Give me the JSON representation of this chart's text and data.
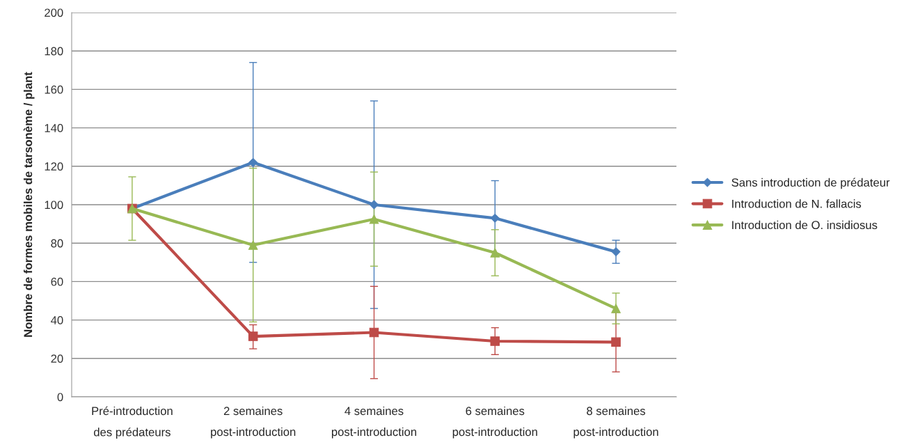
{
  "chart_data": {
    "type": "line",
    "ylabel": "Nombre de formes mobiles de tarsonème / plant",
    "categories": [
      "Pré-introduction\ndes prédateurs",
      "2 semaines\npost-introduction",
      "4 semaines\npost-introduction",
      "6 semaines\npost-introduction",
      "8 semaines\npost-introduction"
    ],
    "series": [
      {
        "name": "Sans introduction de prédateur",
        "color": "#4a7ebb",
        "marker": "diamond",
        "values": [
          98,
          122,
          100,
          93,
          75.5
        ],
        "errors": [
          null,
          [
            70,
            174
          ],
          [
            46,
            154
          ],
          [
            73.5,
            112.5
          ],
          [
            69.5,
            81.5
          ]
        ]
      },
      {
        "name": "Introduction de N. fallacis",
        "color": "#be4b48",
        "marker": "square",
        "values": [
          98,
          31.5,
          33.5,
          29,
          28.5
        ],
        "errors": [
          null,
          [
            25,
            37.5
          ],
          [
            9.5,
            57.5
          ],
          [
            22,
            36
          ],
          [
            13,
            44
          ]
        ]
      },
      {
        "name": "Introduction de O. insidiosus",
        "color": "#98b954",
        "marker": "triangle",
        "values": [
          98,
          79,
          92.5,
          75,
          46
        ],
        "errors": [
          [
            81.5,
            114.5
          ],
          [
            39,
            119
          ],
          [
            68,
            117
          ],
          [
            63,
            87
          ],
          [
            38,
            54
          ]
        ]
      }
    ],
    "ylim": [
      0,
      200
    ],
    "yticks": [
      0,
      20,
      40,
      60,
      80,
      100,
      120,
      140,
      160,
      180,
      200
    ],
    "grid": "y",
    "legend": "right",
    "line_style": "solid"
  }
}
